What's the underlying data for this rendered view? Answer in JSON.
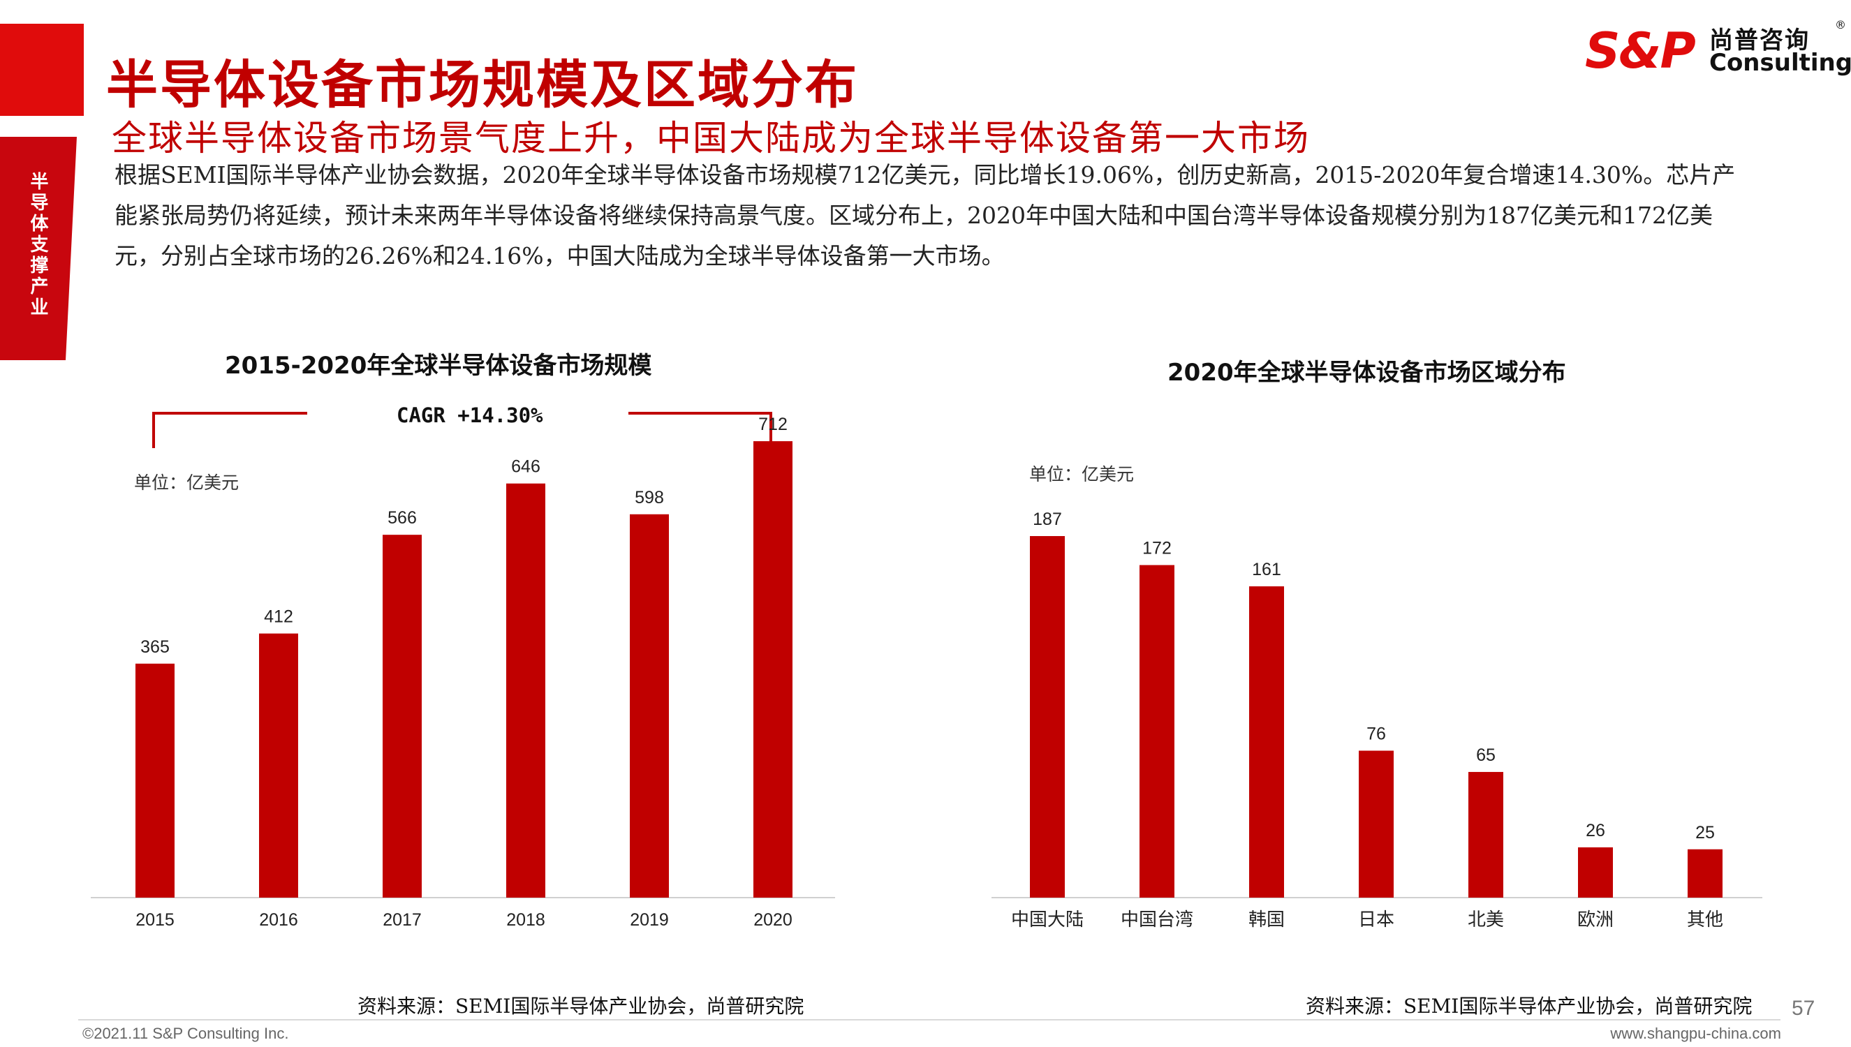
{
  "header": {
    "title": "半导体设备市场规模及区域分布",
    "subtitle": "全球半导体设备市场景气度上升，中国大陆成为全球半导体设备第一大市场",
    "side_tab": "半导体支撑产业",
    "paragraph": "根据SEMI国际半导体产业协会数据，2020年全球半导体设备市场规模712亿美元，同比增长19.06%，创历史新高，2015-2020年复合增速14.30%。芯片产能紧张局势仍将延续，预计未来两年半导体设备将继续保持高景气度。区域分布上，2020年中国大陆和中国台湾半导体设备规模分别为187亿美元和172亿美元，分别占全球市场的26.26%和24.16%，中国大陆成为全球半导体设备第一大市场。"
  },
  "logo": {
    "mark": "S&P",
    "cn": "尚普咨询",
    "en": "Consulting",
    "reg": "®"
  },
  "colors": {
    "accent": "#c00000",
    "bar": "#c00000",
    "brand": "#e00c0c"
  },
  "chart_data": [
    {
      "type": "bar",
      "title": "2015-2020年全球半导体设备市场规模",
      "unit_label": "单位：亿美元",
      "annotation": "CAGR +14.30%",
      "categories": [
        "2015",
        "2016",
        "2017",
        "2018",
        "2019",
        "2020"
      ],
      "values": [
        365,
        412,
        566,
        646,
        598,
        712
      ],
      "ylim": [
        0,
        760
      ],
      "source": "资料来源：SEMI国际半导体产业协会，尚普研究院"
    },
    {
      "type": "bar",
      "title": "2020年全球半导体设备市场区域分布",
      "unit_label": "单位：亿美元",
      "categories": [
        "中国大陆",
        "中国台湾",
        "韩国",
        "日本",
        "北美",
        "欧洲",
        "其他"
      ],
      "values": [
        187,
        172,
        161,
        76,
        65,
        26,
        25
      ],
      "ylim": [
        0,
        200
      ],
      "source": "资料来源：SEMI国际半导体产业协会，尚普研究院"
    }
  ],
  "footer": {
    "copyright": "©2021.11  S&P Consulting Inc.",
    "website": "www.shangpu-china.com",
    "page": "57"
  }
}
